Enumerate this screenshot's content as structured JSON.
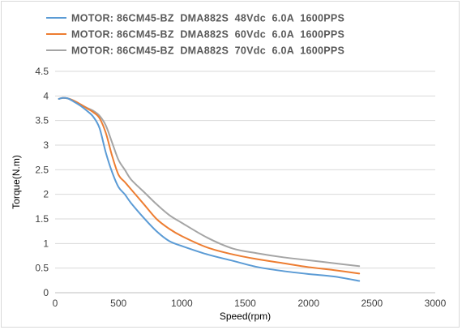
{
  "chart_data": {
    "type": "line",
    "xlabel": "Speed(rpm)",
    "ylabel": "Torque(N.m)",
    "xlim": [
      0,
      3000
    ],
    "ylim": [
      0,
      4.5
    ],
    "xticks": [
      0,
      500,
      1000,
      1500,
      2000,
      2500,
      3000
    ],
    "yticks": [
      0,
      0.5,
      1,
      1.5,
      2,
      2.5,
      3,
      3.5,
      4,
      4.5
    ],
    "grid": "horizontal",
    "legend_position": "top-left",
    "series": [
      {
        "name": "MOTOR: 86CM45-BZ  DMA882S  48Vdc  6.0A  1600PPS",
        "color": "#5b9bd5",
        "x": [
          30,
          60,
          100,
          150,
          200,
          250,
          300,
          350,
          400,
          450,
          500,
          550,
          600,
          700,
          800,
          900,
          1000,
          1200,
          1400,
          1600,
          1800,
          2000,
          2200,
          2400
        ],
        "y": [
          3.94,
          3.96,
          3.95,
          3.88,
          3.8,
          3.7,
          3.58,
          3.35,
          2.85,
          2.45,
          2.15,
          2.0,
          1.82,
          1.52,
          1.25,
          1.05,
          0.95,
          0.78,
          0.65,
          0.52,
          0.44,
          0.38,
          0.33,
          0.24
        ]
      },
      {
        "name": "MOTOR: 86CM45-BZ  DMA882S  60Vdc  6.0A  1600PPS",
        "color": "#ed7d31",
        "x": [
          30,
          60,
          100,
          150,
          200,
          250,
          300,
          350,
          400,
          450,
          500,
          550,
          600,
          700,
          800,
          900,
          1000,
          1200,
          1400,
          1600,
          1800,
          2000,
          2200,
          2400
        ],
        "y": [
          3.94,
          3.96,
          3.95,
          3.9,
          3.83,
          3.75,
          3.67,
          3.55,
          3.25,
          2.78,
          2.4,
          2.25,
          2.1,
          1.8,
          1.5,
          1.3,
          1.15,
          0.92,
          0.78,
          0.68,
          0.6,
          0.52,
          0.46,
          0.39
        ]
      },
      {
        "name": "MOTOR: 86CM45-BZ  DMA882S  70Vdc  6.0A  1600PPS",
        "color": "#a5a5a5",
        "x": [
          30,
          60,
          100,
          150,
          200,
          250,
          300,
          350,
          400,
          450,
          500,
          550,
          600,
          700,
          800,
          900,
          1000,
          1200,
          1400,
          1600,
          1800,
          2000,
          2200,
          2400
        ],
        "y": [
          3.94,
          3.96,
          3.95,
          3.9,
          3.83,
          3.76,
          3.7,
          3.6,
          3.4,
          3.05,
          2.7,
          2.5,
          2.3,
          2.05,
          1.8,
          1.58,
          1.42,
          1.12,
          0.9,
          0.8,
          0.72,
          0.66,
          0.6,
          0.54
        ]
      }
    ]
  }
}
